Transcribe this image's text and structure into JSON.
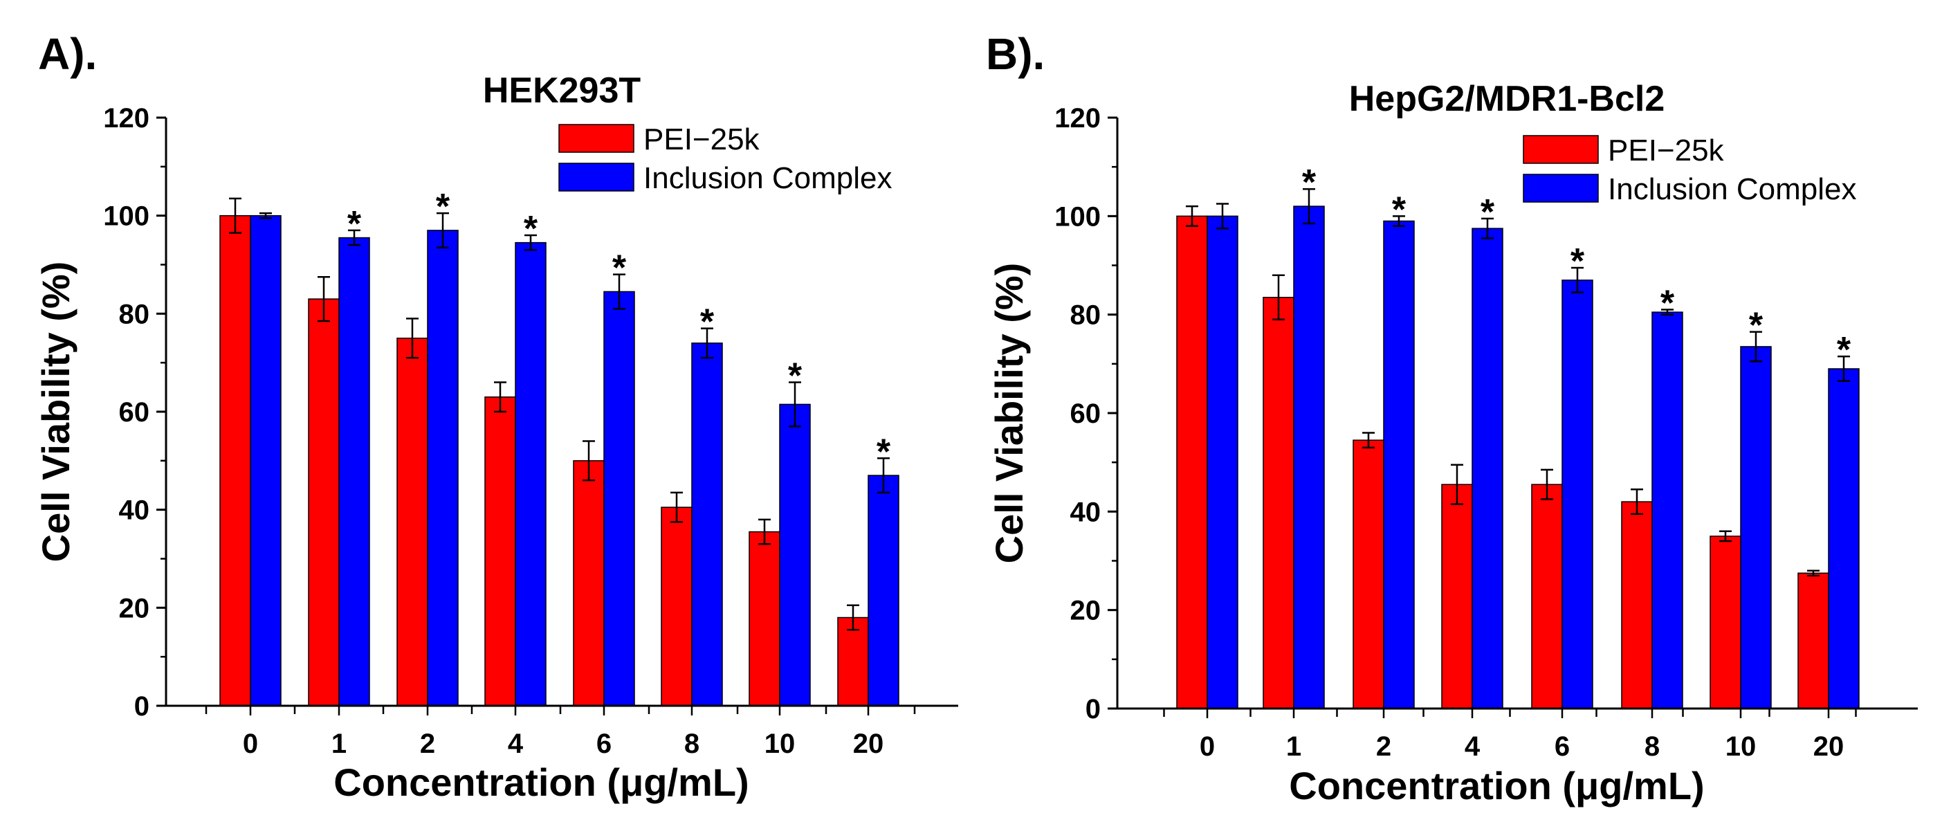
{
  "colors": {
    "pei": "#ff0000",
    "inclusion": "#0000ff",
    "axis": "#000000"
  },
  "chart_data": [
    {
      "type": "bar",
      "panel_label": "A).",
      "title": "HEK293T",
      "xlabel": "Concentration (μg/mL)",
      "ylabel": "Cell Viability (%)",
      "categories": [
        "0",
        "1",
        "2",
        "4",
        "6",
        "8",
        "10",
        "20"
      ],
      "ylim": [
        0,
        120
      ],
      "yticks": [
        0,
        20,
        40,
        60,
        80,
        100,
        120
      ],
      "legend_position": "top-right",
      "significance_marker": "*",
      "series": [
        {
          "name": "PEI−25k",
          "color": "#ff0000",
          "values": [
            100,
            83,
            75,
            63,
            50,
            40.5,
            35.5,
            18
          ],
          "errors": [
            3.5,
            4.5,
            4,
            3,
            4,
            3,
            2.5,
            2.5
          ]
        },
        {
          "name": "Inclusion Complex",
          "color": "#0000ff",
          "values": [
            100,
            95.5,
            97,
            94.5,
            84.5,
            74,
            61.5,
            47
          ],
          "errors": [
            0.5,
            1.5,
            3.5,
            1.5,
            3.5,
            3,
            4.5,
            3.5
          ]
        }
      ],
      "significant": [
        false,
        true,
        true,
        true,
        true,
        true,
        true,
        true
      ]
    },
    {
      "type": "bar",
      "panel_label": "B).",
      "title": "HepG2/MDR1-Bcl2",
      "xlabel": "Concentration (μg/mL)",
      "ylabel": "Cell Viability (%)",
      "categories": [
        "0",
        "1",
        "2",
        "4",
        "6",
        "8",
        "10",
        "20"
      ],
      "ylim": [
        0,
        120
      ],
      "yticks": [
        0,
        20,
        40,
        60,
        80,
        100,
        120
      ],
      "legend_position": "top-right",
      "significance_marker": "*",
      "series": [
        {
          "name": "PEI−25k",
          "color": "#ff0000",
          "values": [
            100,
            83.5,
            54.5,
            45.5,
            45.5,
            42,
            35,
            27.5
          ],
          "errors": [
            2,
            4.5,
            1.5,
            4,
            3,
            2.5,
            1,
            0.5
          ]
        },
        {
          "name": "Inclusion Complex",
          "color": "#0000ff",
          "values": [
            100,
            102,
            99,
            97.5,
            87,
            80.5,
            73.5,
            69
          ],
          "errors": [
            2.5,
            3.5,
            1,
            2,
            2.5,
            0.5,
            3,
            2.5
          ]
        }
      ],
      "significant": [
        false,
        true,
        true,
        true,
        true,
        true,
        true,
        true
      ]
    }
  ]
}
